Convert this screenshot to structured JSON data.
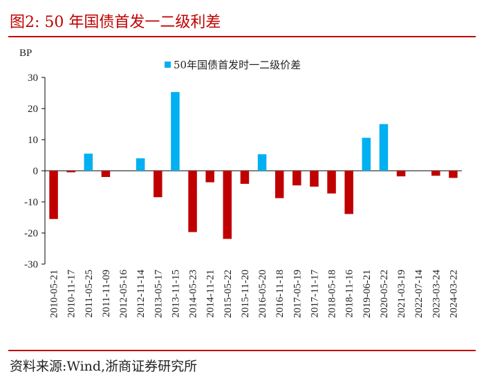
{
  "figure": {
    "title": "图2:   50 年国债首发一二级利差",
    "source": "资料来源:Wind,浙商证券研究所"
  },
  "colors": {
    "positive": "#00b0f0",
    "negative": "#c00000",
    "accent": "#c00000"
  },
  "chart_data": {
    "type": "bar",
    "title": "",
    "ylabel": "BP",
    "xlabel": "",
    "ylim": [
      -30,
      30
    ],
    "yticks": [
      30,
      20,
      10,
      0,
      -10,
      -20,
      -30
    ],
    "legend": "50年国债首发时一二级价差",
    "legend_position": "top-center",
    "categories": [
      "2010-05-21",
      "2010-11-17",
      "2011-05-25",
      "2011-11-09",
      "2012-05-16",
      "2012-11-14",
      "2013-05-17",
      "2013-11-15",
      "2014-05-23",
      "2014-11-21",
      "2015-05-22",
      "2015-11-20",
      "2016-05-20",
      "2016-11-18",
      "2017-05-19",
      "2017-11-17",
      "2018-05-18",
      "2018-11-16",
      "2019-06-21",
      "2020-05-22",
      "2021-03-19",
      "2022-07-14",
      "2023-03-24",
      "2024-03-22"
    ],
    "values": [
      -15.5,
      -0.5,
      5.5,
      -2.0,
      0,
      4.0,
      -8.5,
      25.3,
      -19.7,
      -3.7,
      -21.9,
      -4.2,
      5.3,
      -8.8,
      -4.7,
      -5.1,
      -7.3,
      -13.9,
      10.6,
      15.0,
      -1.8,
      0,
      -1.6,
      -2.3
    ]
  }
}
